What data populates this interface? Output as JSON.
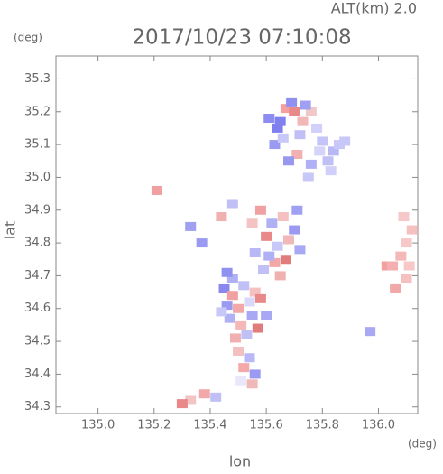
{
  "chart_data": {
    "type": "scatter",
    "annotation": "ALT(km) 2.0",
    "title": "2017/10/23 07:10:08",
    "x_label": "lon",
    "x_unit": "(deg)",
    "y_label": "lat",
    "y_unit": "(deg)",
    "xlim": [
      134.85,
      136.14
    ],
    "ylim": [
      34.28,
      35.37
    ],
    "xticks": [
      {
        "value": 135,
        "label": "135.0"
      },
      135.2,
      135.4,
      135.6,
      135.8,
      {
        "value": 136,
        "label": "136.0"
      }
    ],
    "yticks": [
      34.3,
      34.4,
      34.5,
      34.6,
      34.7,
      34.8,
      34.9,
      {
        "value": 35,
        "label": "35.0"
      },
      35.1,
      35.2,
      35.3
    ],
    "x": [
      135.61,
      135.64,
      135.67,
      135.63,
      135.66,
      135.7,
      135.69,
      135.73,
      135.76,
      135.72,
      135.78,
      135.8,
      135.84,
      135.86,
      135.82,
      135.79,
      135.76,
      135.71,
      135.75,
      135.83,
      135.88,
      135.74,
      135.68,
      135.65,
      135.58,
      135.62,
      135.66,
      135.7,
      135.6,
      135.64,
      135.68,
      135.72,
      135.56,
      135.63,
      135.59,
      135.67,
      135.71,
      135.55,
      135.61,
      135.65,
      135.45,
      135.48,
      135.52,
      135.56,
      135.46,
      135.5,
      135.54,
      135.58,
      135.47,
      135.51,
      135.55,
      135.49,
      135.53,
      135.57,
      135.5,
      135.54,
      135.52,
      135.56,
      135.51,
      135.55,
      135.44,
      135.48,
      135.38,
      135.42,
      135.33,
      135.3,
      135.46,
      135.6,
      136.09,
      136.12,
      136.1,
      136.08,
      136.11,
      136.1,
      136.06,
      136.03,
      136.05,
      135.97,
      135.33,
      135.44,
      135.37,
      135.48,
      135.21
    ],
    "y": [
      35.18,
      35.15,
      35.21,
      35.1,
      35.12,
      35.2,
      35.23,
      35.17,
      35.2,
      35.13,
      35.15,
      35.11,
      35.08,
      35.1,
      35.05,
      35.08,
      35.04,
      35.07,
      35.0,
      35.02,
      35.11,
      35.22,
      35.05,
      35.17,
      34.9,
      34.86,
      34.88,
      34.84,
      34.82,
      34.79,
      34.81,
      34.78,
      34.77,
      34.74,
      34.72,
      34.75,
      34.9,
      34.86,
      34.76,
      34.7,
      34.66,
      34.64,
      34.67,
      34.65,
      34.61,
      34.6,
      34.62,
      34.63,
      34.57,
      34.55,
      34.58,
      34.51,
      34.52,
      34.54,
      34.47,
      34.45,
      34.42,
      34.4,
      34.38,
      34.37,
      34.59,
      34.69,
      34.34,
      34.33,
      34.32,
      34.31,
      34.71,
      34.58,
      34.88,
      34.84,
      34.8,
      34.76,
      34.73,
      34.69,
      34.66,
      34.73,
      34.73,
      34.53,
      34.85,
      34.88,
      34.8,
      34.92,
      34.96
    ],
    "colors": [
      "#8c8cf2",
      "#7f7ff0",
      "#f4a0a0",
      "#9a9af2",
      "#c8c8f8",
      "#e88a8a",
      "#9090f0",
      "#f2b8b8",
      "#f0c8c8",
      "#c0c0f6",
      "#d0d0fa",
      "#c4c4f8",
      "#b8b8f6",
      "#c8c8f8",
      "#c0c0f6",
      "#d4d4fa",
      "#b0b0f4",
      "#f2b0b0",
      "#c8c8f8",
      "#d0d0fa",
      "#c8c8f8",
      "#a0a0f2",
      "#9898f0",
      "#8080ee",
      "#f0a0a0",
      "#b0b0f4",
      "#f4c0c0",
      "#9a9af2",
      "#e88888",
      "#c8c8f8",
      "#f0b8b8",
      "#a8a8f4",
      "#b8b8f6",
      "#f2a8a8",
      "#c0c0f6",
      "#e07c7c",
      "#a0a0f2",
      "#f4c4c4",
      "#b0b0f4",
      "#f0b0b0",
      "#8888ee",
      "#f0a0a0",
      "#c0c0f6",
      "#f4c0c0",
      "#9a9af2",
      "#f2a8a8",
      "#d8d8fa",
      "#e88a8a",
      "#b0b0f4",
      "#f4b8b8",
      "#a8a8f4",
      "#f0b0b0",
      "#c0c0f6",
      "#e07c7c",
      "#f2c0c0",
      "#b8b8f6",
      "#f4a8a8",
      "#9a9af2",
      "#e8e8fa",
      "#f0b8b8",
      "#c8c8f8",
      "#b0b0f4",
      "#f2a8a8",
      "#c0c0f6",
      "#f4c4c4",
      "#e88888",
      "#9090f0",
      "#a8a8f4",
      "#f6c8c8",
      "#f4c0c0",
      "#f6c8c8",
      "#f4b8b8",
      "#f6c8c8",
      "#f4c0c0",
      "#f0a8a8",
      "#f2a0a0",
      "#f4b0b0",
      "#a8a8f4",
      "#a0a0f2",
      "#f0b0b0",
      "#9a9af2",
      "#c0c0f6",
      "#f0a0a0"
    ]
  }
}
